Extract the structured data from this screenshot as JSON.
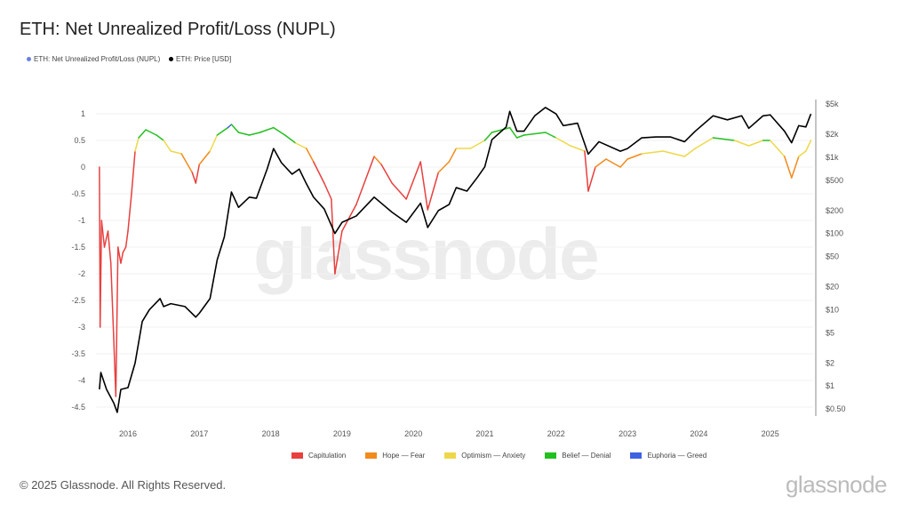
{
  "title": "ETH: Net Unrealized Profit/Loss (NUPL)",
  "legend_top": [
    {
      "label": "ETH: Net Unrealized Profit/Loss (NUPL)",
      "color": "#6b7fe0"
    },
    {
      "label": "ETH: Price [USD]",
      "color": "#000000"
    }
  ],
  "watermark": "glassnode",
  "footer": {
    "copyright": "© 2025 Glassnode. All Rights Reserved.",
    "brand": "glassnode"
  },
  "chart_data": {
    "type": "line",
    "title": "ETH: Net Unrealized Profit/Loss (NUPL)",
    "x_ticks": [
      "2016",
      "2017",
      "2018",
      "2019",
      "2020",
      "2021",
      "2022",
      "2023",
      "2024",
      "2025"
    ],
    "y_left_ticks": [
      "1",
      "0.5",
      "0",
      "-0.5",
      "-1",
      "-1.5",
      "-2",
      "-2.5",
      "-3",
      "-3.5",
      "-4",
      "-4.5"
    ],
    "y_left_values": [
      1,
      0.5,
      0,
      -0.5,
      -1,
      -1.5,
      -2,
      -2.5,
      -3,
      -3.5,
      -4,
      -4.5
    ],
    "y_right_ticks": [
      {
        "label": "$5k",
        "v": 5000
      },
      {
        "label": "$2k",
        "v": 2000
      },
      {
        "label": "$1k",
        "v": 1000
      },
      {
        "label": "$500",
        "v": 500
      },
      {
        "label": "$200",
        "v": 200
      },
      {
        "label": "$100",
        "v": 100
      },
      {
        "label": "$50",
        "v": 50
      },
      {
        "label": "$20",
        "v": 20
      },
      {
        "label": "$10",
        "v": 10
      },
      {
        "label": "$5",
        "v": 5
      },
      {
        "label": "$2",
        "v": 2
      },
      {
        "label": "$1",
        "v": 1
      },
      {
        "label": "$0.50",
        "v": 0.5
      }
    ],
    "y_right_scale": "log",
    "zones": [
      {
        "name": "Capitulation",
        "color": "#e8403f",
        "max": 0
      },
      {
        "name": "Hope — Fear",
        "color": "#f28a1c",
        "max": 0.25
      },
      {
        "name": "Optimism — Anxiety",
        "color": "#eed84a",
        "max": 0.5
      },
      {
        "name": "Belief — Denial",
        "color": "#22c01f",
        "max": 0.75
      },
      {
        "name": "Euphoria — Greed",
        "color": "#3f62e3",
        "max": 1
      }
    ],
    "nupl": [
      [
        2015.6,
        0
      ],
      [
        2015.61,
        -3
      ],
      [
        2015.63,
        -1
      ],
      [
        2015.67,
        -1.5
      ],
      [
        2015.72,
        -1.2
      ],
      [
        2015.76,
        -1.8
      ],
      [
        2015.8,
        -3.2
      ],
      [
        2015.83,
        -4.3
      ],
      [
        2015.86,
        -1.5
      ],
      [
        2015.9,
        -1.8
      ],
      [
        2015.93,
        -1.6
      ],
      [
        2015.97,
        -1.5
      ],
      [
        2016.0,
        -1.2
      ],
      [
        2016.05,
        -0.5
      ],
      [
        2016.1,
        0.3
      ],
      [
        2016.15,
        0.55
      ],
      [
        2016.25,
        0.7
      ],
      [
        2016.4,
        0.6
      ],
      [
        2016.5,
        0.5
      ],
      [
        2016.6,
        0.3
      ],
      [
        2016.75,
        0.25
      ],
      [
        2016.9,
        -0.1
      ],
      [
        2016.95,
        -0.3
      ],
      [
        2017.0,
        0.05
      ],
      [
        2017.15,
        0.3
      ],
      [
        2017.25,
        0.6
      ],
      [
        2017.4,
        0.74
      ],
      [
        2017.45,
        0.8
      ],
      [
        2017.55,
        0.65
      ],
      [
        2017.7,
        0.6
      ],
      [
        2017.85,
        0.65
      ],
      [
        2018.04,
        0.74
      ],
      [
        2018.2,
        0.6
      ],
      [
        2018.35,
        0.45
      ],
      [
        2018.5,
        0.35
      ],
      [
        2018.6,
        0.1
      ],
      [
        2018.75,
        -0.3
      ],
      [
        2018.85,
        -0.6
      ],
      [
        2018.9,
        -2
      ],
      [
        2019.0,
        -1.2
      ],
      [
        2019.2,
        -0.7
      ],
      [
        2019.45,
        0.2
      ],
      [
        2019.55,
        0.05
      ],
      [
        2019.7,
        -0.3
      ],
      [
        2019.9,
        -0.6
      ],
      [
        2020.1,
        0.1
      ],
      [
        2020.2,
        -0.8
      ],
      [
        2020.35,
        -0.1
      ],
      [
        2020.5,
        0.1
      ],
      [
        2020.6,
        0.35
      ],
      [
        2020.8,
        0.35
      ],
      [
        2021.0,
        0.5
      ],
      [
        2021.1,
        0.65
      ],
      [
        2021.35,
        0.74
      ],
      [
        2021.45,
        0.55
      ],
      [
        2021.55,
        0.6
      ],
      [
        2021.85,
        0.65
      ],
      [
        2022.0,
        0.55
      ],
      [
        2022.2,
        0.4
      ],
      [
        2022.4,
        0.3
      ],
      [
        2022.45,
        -0.45
      ],
      [
        2022.55,
        0
      ],
      [
        2022.7,
        0.15
      ],
      [
        2022.9,
        0
      ],
      [
        2023.0,
        0.15
      ],
      [
        2023.2,
        0.25
      ],
      [
        2023.5,
        0.3
      ],
      [
        2023.8,
        0.2
      ],
      [
        2023.95,
        0.35
      ],
      [
        2024.2,
        0.55
      ],
      [
        2024.5,
        0.5
      ],
      [
        2024.7,
        0.4
      ],
      [
        2024.9,
        0.5
      ],
      [
        2025.0,
        0.5
      ],
      [
        2025.2,
        0.2
      ],
      [
        2025.3,
        -0.2
      ],
      [
        2025.4,
        0.2
      ],
      [
        2025.5,
        0.3
      ],
      [
        2025.57,
        0.5
      ]
    ],
    "price": [
      [
        2015.6,
        0.9
      ],
      [
        2015.62,
        1.5
      ],
      [
        2015.7,
        0.9
      ],
      [
        2015.8,
        0.6
      ],
      [
        2015.85,
        0.45
      ],
      [
        2015.9,
        0.9
      ],
      [
        2016.0,
        0.95
      ],
      [
        2016.1,
        2
      ],
      [
        2016.2,
        7
      ],
      [
        2016.3,
        10
      ],
      [
        2016.45,
        14
      ],
      [
        2016.5,
        11
      ],
      [
        2016.6,
        12
      ],
      [
        2016.8,
        11
      ],
      [
        2016.95,
        8
      ],
      [
        2017.0,
        9
      ],
      [
        2017.15,
        14
      ],
      [
        2017.25,
        45
      ],
      [
        2017.35,
        90
      ],
      [
        2017.45,
        350
      ],
      [
        2017.55,
        220
      ],
      [
        2017.7,
        300
      ],
      [
        2017.8,
        290
      ],
      [
        2017.95,
        700
      ],
      [
        2018.04,
        1300
      ],
      [
        2018.15,
        850
      ],
      [
        2018.3,
        600
      ],
      [
        2018.4,
        700
      ],
      [
        2018.5,
        450
      ],
      [
        2018.6,
        300
      ],
      [
        2018.75,
        210
      ],
      [
        2018.9,
        100
      ],
      [
        2019.0,
        140
      ],
      [
        2019.2,
        170
      ],
      [
        2019.45,
        300
      ],
      [
        2019.55,
        250
      ],
      [
        2019.7,
        190
      ],
      [
        2019.9,
        140
      ],
      [
        2020.1,
        250
      ],
      [
        2020.2,
        120
      ],
      [
        2020.35,
        200
      ],
      [
        2020.5,
        240
      ],
      [
        2020.6,
        400
      ],
      [
        2020.75,
        360
      ],
      [
        2020.9,
        550
      ],
      [
        2021.0,
        750
      ],
      [
        2021.1,
        1700
      ],
      [
        2021.3,
        2500
      ],
      [
        2021.35,
        4000
      ],
      [
        2021.45,
        2200
      ],
      [
        2021.55,
        2200
      ],
      [
        2021.7,
        3500
      ],
      [
        2021.85,
        4500
      ],
      [
        2022.0,
        3700
      ],
      [
        2022.1,
        2600
      ],
      [
        2022.3,
        2800
      ],
      [
        2022.45,
        1100
      ],
      [
        2022.6,
        1600
      ],
      [
        2022.9,
        1200
      ],
      [
        2023.0,
        1300
      ],
      [
        2023.2,
        1800
      ],
      [
        2023.4,
        1850
      ],
      [
        2023.6,
        1850
      ],
      [
        2023.8,
        1600
      ],
      [
        2023.95,
        2200
      ],
      [
        2024.2,
        3500
      ],
      [
        2024.4,
        3100
      ],
      [
        2024.6,
        3500
      ],
      [
        2024.7,
        2400
      ],
      [
        2024.9,
        3500
      ],
      [
        2025.0,
        3600
      ],
      [
        2025.2,
        2200
      ],
      [
        2025.3,
        1550
      ],
      [
        2025.4,
        2600
      ],
      [
        2025.5,
        2500
      ],
      [
        2025.57,
        3700
      ]
    ]
  }
}
